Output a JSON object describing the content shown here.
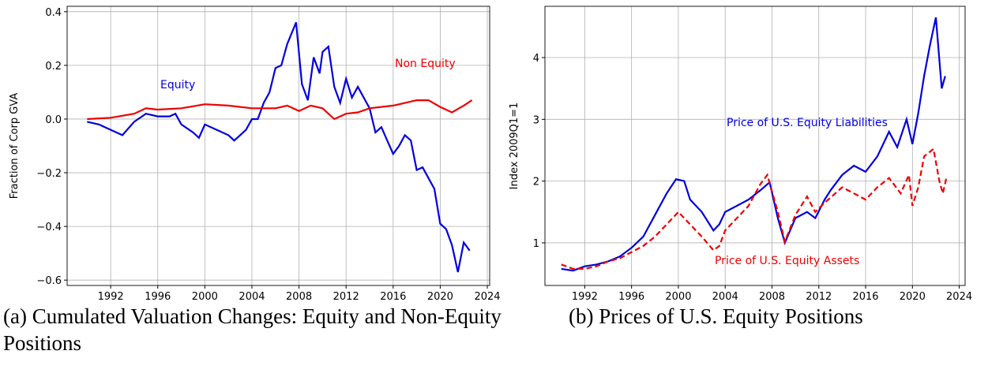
{
  "chart_data": [
    {
      "type": "line",
      "caption": "(a) Cumulated Valuation Changes: Equity and Non-Equity Positions",
      "ylabel": "Fraction of Corp GVA",
      "xlim": [
        1988.3,
        2024.2
      ],
      "ylim": [
        -0.62,
        0.42
      ],
      "xticks": [
        1992,
        1996,
        2000,
        2004,
        2008,
        2012,
        2016,
        2020,
        2024
      ],
      "yticks": [
        {
          "value": -0.6,
          "label": "−0.6"
        },
        {
          "value": -0.4,
          "label": "−0.4"
        },
        {
          "value": -0.2,
          "label": "−0.2"
        },
        {
          "value": 0,
          "label": "0.0"
        },
        0.2,
        0.4
      ],
      "grid": true,
      "series": [
        {
          "name": "Equity",
          "color": "#0000dd",
          "line_style": "solid",
          "x": [
            1990,
            1991,
            1992,
            1993,
            1994,
            1995,
            1996,
            1997,
            1997.5,
            1998,
            1999,
            1999.5,
            2000,
            2001,
            2002,
            2002.5,
            2003,
            2003.5,
            2004,
            2004.5,
            2005,
            2005.5,
            2006,
            2006.5,
            2007,
            2007.75,
            2008.25,
            2008.75,
            2009.25,
            2009.75,
            2010,
            2010.5,
            2011,
            2011.5,
            2012,
            2012.5,
            2013,
            2013.5,
            2014,
            2014.5,
            2015,
            2015.5,
            2016,
            2016.5,
            2017,
            2017.5,
            2018,
            2018.5,
            2019,
            2019.5,
            2020,
            2020.5,
            2021,
            2021.5,
            2022,
            2022.5
          ],
          "values": [
            -0.01,
            -0.02,
            -0.04,
            -0.06,
            -0.01,
            0.02,
            0.01,
            0.01,
            0.02,
            -0.02,
            -0.05,
            -0.07,
            -0.02,
            -0.04,
            -0.06,
            -0.08,
            -0.06,
            -0.04,
            0.0,
            0.0,
            0.06,
            0.1,
            0.19,
            0.2,
            0.28,
            0.36,
            0.13,
            0.07,
            0.23,
            0.17,
            0.25,
            0.27,
            0.12,
            0.06,
            0.15,
            0.08,
            0.12,
            0.08,
            0.04,
            -0.05,
            -0.03,
            -0.08,
            -0.13,
            -0.1,
            -0.06,
            -0.08,
            -0.19,
            -0.18,
            -0.22,
            -0.26,
            -0.39,
            -0.41,
            -0.47,
            -0.57,
            -0.46,
            -0.49
          ]
        },
        {
          "name": "Non Equity",
          "color": "#ee0000",
          "line_style": "solid",
          "x": [
            1990,
            1992,
            1994,
            1995,
            1996,
            1998,
            2000,
            2002,
            2004,
            2006,
            2007,
            2008,
            2009,
            2010,
            2011,
            2012,
            2013,
            2014,
            2016,
            2018,
            2019,
            2020,
            2021,
            2022,
            2022.7
          ],
          "values": [
            0.0,
            0.005,
            0.02,
            0.04,
            0.035,
            0.04,
            0.055,
            0.05,
            0.04,
            0.04,
            0.05,
            0.03,
            0.05,
            0.04,
            0.0,
            0.02,
            0.025,
            0.04,
            0.05,
            0.07,
            0.07,
            0.045,
            0.025,
            0.05,
            0.07
          ]
        }
      ]
    },
    {
      "type": "line",
      "caption": "(b) Prices of U.S. Equity Positions",
      "ylabel": "Index 2009Q1=1",
      "xlim": [
        1988.6,
        2024.5
      ],
      "ylim": [
        0.31,
        4.83
      ],
      "xticks": [
        1992,
        1996,
        2000,
        2004,
        2008,
        2012,
        2016,
        2020,
        2024
      ],
      "yticks": [
        1,
        2,
        3,
        4
      ],
      "grid": true,
      "series": [
        {
          "name": "Price of U.S. Equity Liabilities",
          "color": "#0000dd",
          "line_style": "solid",
          "x": [
            1990,
            1991,
            1992,
            1993,
            1994,
            1995,
            1996,
            1997,
            1998,
            1999,
            1999.8,
            2000.5,
            2001,
            2002,
            2003,
            2003.5,
            2004,
            2005,
            2006,
            2007,
            2007.8,
            2008.5,
            2009.1,
            2010,
            2011,
            2011.7,
            2012.5,
            2013,
            2014,
            2015,
            2016,
            2017,
            2018,
            2018.7,
            2019.5,
            2020,
            2020.5,
            2021,
            2021.5,
            2022,
            2022.5,
            2022.8
          ],
          "values": [
            0.58,
            0.55,
            0.62,
            0.65,
            0.7,
            0.78,
            0.92,
            1.1,
            1.45,
            1.8,
            2.03,
            2.0,
            1.7,
            1.5,
            1.2,
            1.3,
            1.5,
            1.6,
            1.7,
            1.85,
            1.98,
            1.4,
            1.0,
            1.4,
            1.5,
            1.4,
            1.7,
            1.85,
            2.1,
            2.25,
            2.15,
            2.4,
            2.8,
            2.55,
            3.0,
            2.6,
            3.1,
            3.7,
            4.2,
            4.65,
            3.5,
            3.7
          ]
        },
        {
          "name": "Price of U.S. Equity Assets",
          "color": "#ee0000",
          "line_style": "dashed",
          "x": [
            1990,
            1991,
            1992,
            1993,
            1994,
            1995,
            1996,
            1997,
            1998,
            1999,
            2000,
            2001,
            2002,
            2003,
            2003.5,
            2004,
            2005,
            2006,
            2007,
            2007.6,
            2008.5,
            2009.1,
            2010,
            2011,
            2011.7,
            2012.5,
            2014,
            2015,
            2016,
            2017,
            2018,
            2019,
            2019.7,
            2020,
            2020.5,
            2021,
            2021.8,
            2022.3,
            2022.6,
            2022.9
          ],
          "values": [
            0.65,
            0.58,
            0.58,
            0.62,
            0.7,
            0.75,
            0.85,
            0.95,
            1.1,
            1.3,
            1.5,
            1.3,
            1.1,
            0.88,
            0.95,
            1.2,
            1.4,
            1.6,
            1.95,
            2.1,
            1.5,
            1.02,
            1.45,
            1.75,
            1.5,
            1.65,
            1.9,
            1.8,
            1.7,
            1.9,
            2.05,
            1.8,
            2.1,
            1.6,
            1.9,
            2.4,
            2.52,
            2.0,
            1.8,
            2.05
          ]
        }
      ]
    }
  ]
}
